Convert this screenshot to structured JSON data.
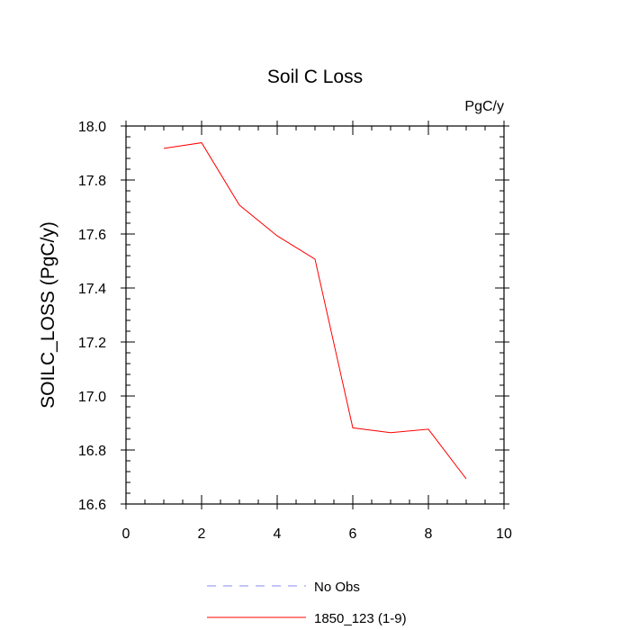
{
  "chart_data": {
    "type": "line",
    "title": "Soil C Loss",
    "units_label": "PgC/y",
    "ylabel": "SOILC_LOSS  (PgC/y)",
    "xlabel": "",
    "xlim": [
      0,
      10
    ],
    "ylim": [
      16.6,
      18.0
    ],
    "x_ticks": [
      0,
      2,
      4,
      6,
      8,
      10
    ],
    "x_tick_labels": [
      "0",
      "2",
      "4",
      "6",
      "8",
      "10"
    ],
    "y_ticks": [
      16.6,
      16.8,
      17.0,
      17.2,
      17.4,
      17.6,
      17.8,
      18.0
    ],
    "y_tick_labels": [
      "16.6",
      "16.8",
      "17.0",
      "17.2",
      "17.4",
      "17.6",
      "17.8",
      "18.0"
    ],
    "grid": false,
    "legend_position": "bottom-center",
    "series": [
      {
        "name": "No Obs",
        "color": "#8888ee",
        "dash": "dashed",
        "x": [],
        "y": []
      },
      {
        "name": "1850_123 (1-9)",
        "color": "#ff0000",
        "dash": "solid",
        "x": [
          1,
          2,
          3,
          4,
          5,
          6,
          7,
          8,
          9
        ],
        "y": [
          17.917,
          17.938,
          17.707,
          17.593,
          17.507,
          16.882,
          16.864,
          16.877,
          16.693
        ]
      }
    ]
  }
}
